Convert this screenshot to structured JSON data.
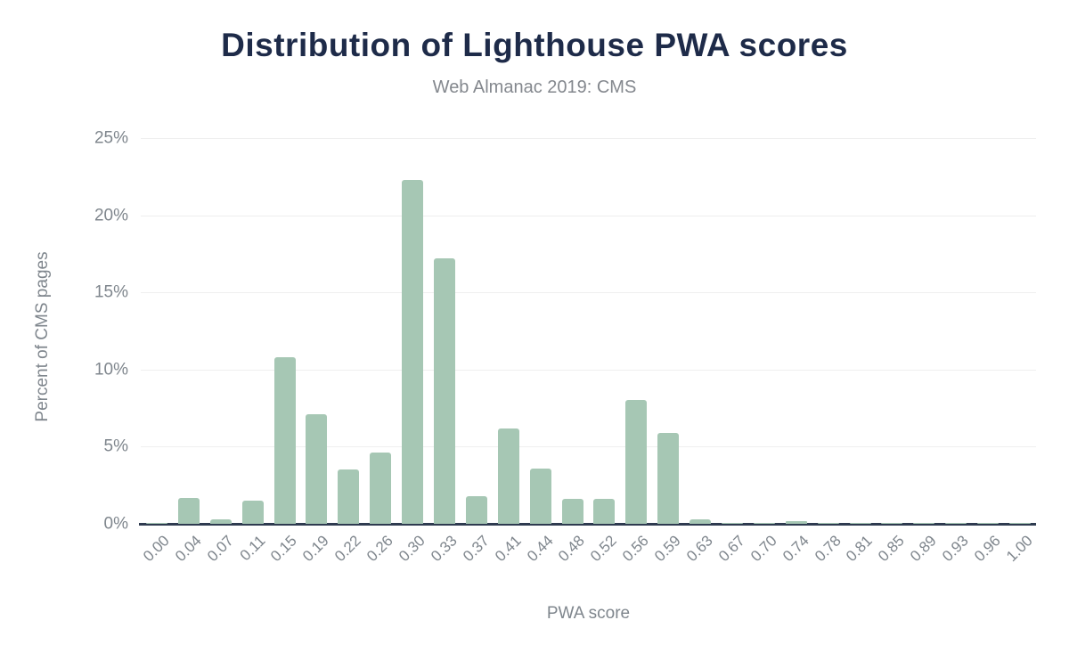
{
  "chart_data": {
    "type": "bar",
    "title": "Distribution of Lighthouse PWA scores",
    "subtitle": "Web Almanac 2019: CMS",
    "xlabel": "PWA score",
    "ylabel": "Percent of CMS pages",
    "categories": [
      "0.00",
      "0.04",
      "0.07",
      "0.11",
      "0.15",
      "0.19",
      "0.22",
      "0.26",
      "0.30",
      "0.33",
      "0.37",
      "0.41",
      "0.44",
      "0.48",
      "0.52",
      "0.56",
      "0.59",
      "0.63",
      "0.67",
      "0.70",
      "0.74",
      "0.78",
      "0.81",
      "0.85",
      "0.89",
      "0.93",
      "0.96",
      "1.00"
    ],
    "values": [
      0.05,
      1.7,
      0.3,
      1.5,
      10.8,
      7.1,
      3.5,
      4.6,
      22.3,
      17.2,
      1.8,
      6.2,
      3.6,
      1.6,
      1.6,
      8.0,
      5.9,
      0.3,
      0.05,
      0.05,
      0.15,
      0.03,
      0.03,
      0.03,
      0.03,
      0.03,
      0.05,
      0.05
    ],
    "ylim": [
      0,
      25
    ],
    "yticks": [
      0,
      5,
      10,
      15,
      20,
      25
    ],
    "ytick_suffix": "%",
    "grid": true,
    "legend": "none",
    "colors": {
      "bar": "#a6c7b4",
      "title": "#1e2b49",
      "subtitle": "#84888e",
      "tick_label": "#7f868d",
      "gridline": "#efefef",
      "baseline": "#2f3b50",
      "background": "#ffffff"
    }
  }
}
